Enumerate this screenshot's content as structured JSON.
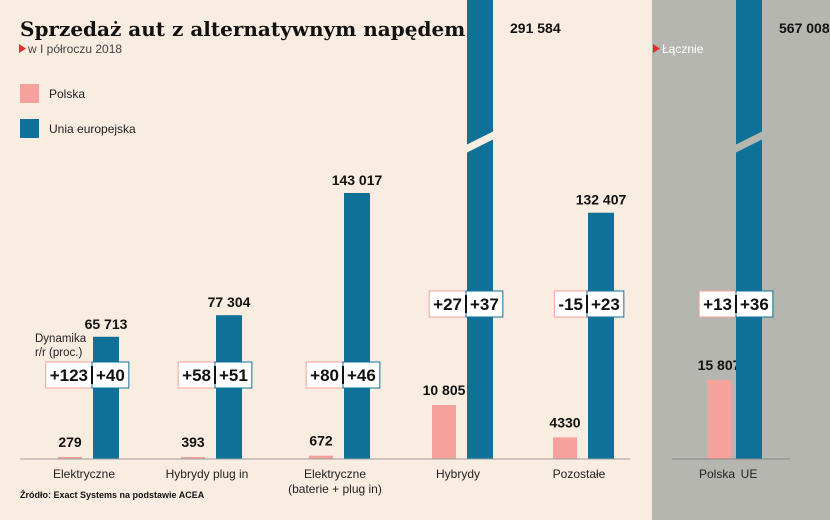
{
  "title": "Sprzedaż aut z alternatywnym napędem",
  "subtitle": "w I półroczu 2018",
  "total_label": "Łącznie",
  "dynamics_label_line1": "Dynamika",
  "dynamics_label_line2": "r/r (proc.)",
  "source": "Źródło: Exact Systems na podstawie ACEA",
  "colors": {
    "polska": "#f7a19c",
    "ue": "#0f7197",
    "background": "#f9ece0",
    "total_panel": "#b6b6b0"
  },
  "chart_data": {
    "type": "bar",
    "categories": [
      "Elektryczne",
      "Hybrydy plug in",
      "Elektryczne\n(baterie + plug in)",
      "Hybrydy",
      "Pozostałe"
    ],
    "series": [
      {
        "name": "Polska",
        "values": [
          279,
          393,
          672,
          10805,
          4330
        ],
        "labels": [
          "279",
          "393",
          "672",
          "10 805",
          "4330"
        ],
        "dynamics": [
          "+123",
          "+58",
          "+80",
          "+27",
          "-15"
        ]
      },
      {
        "name": "Unia europejska",
        "values": [
          65713,
          77304,
          143017,
          291584,
          132407
        ],
        "labels": [
          "65 713",
          "77 304",
          "143 017",
          "291 584",
          "132 407"
        ],
        "dynamics": [
          "+40",
          "+51",
          "+46",
          "+37",
          "+23"
        ]
      }
    ],
    "total": {
      "categories": [
        "Polska",
        "UE"
      ],
      "values": [
        15807,
        567008
      ],
      "labels": [
        "15 807",
        "567 008"
      ],
      "dynamics": [
        "+13",
        "+36"
      ]
    }
  }
}
